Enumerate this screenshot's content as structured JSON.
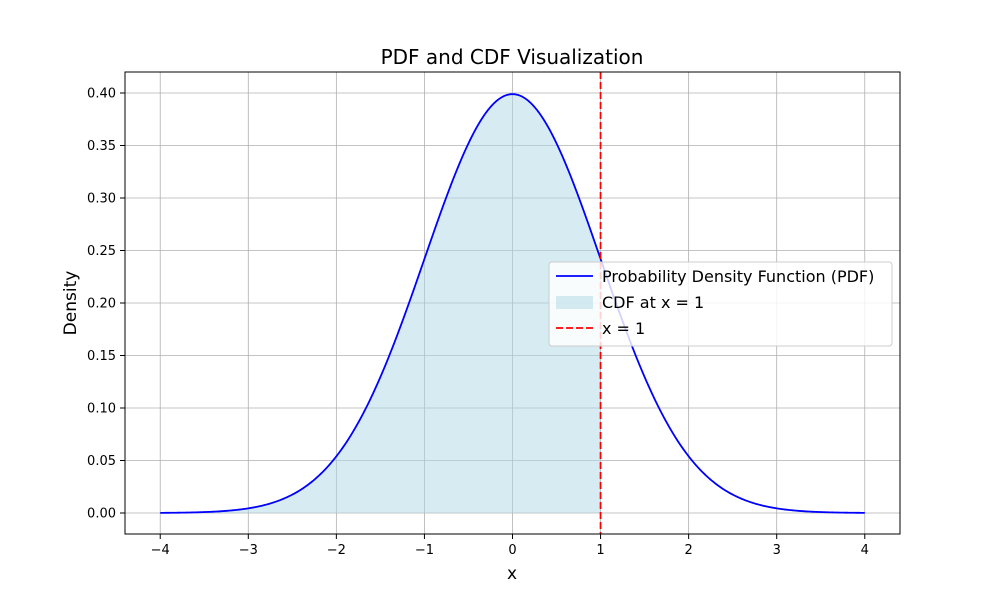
{
  "chart_data": {
    "type": "area",
    "title": "PDF and CDF Visualization",
    "xlabel": "x",
    "ylabel": "Density",
    "xlim": [
      -4.4,
      4.4
    ],
    "ylim": [
      -0.02,
      0.42
    ],
    "x_ticks": [
      -4,
      -3,
      -2,
      -1,
      0,
      1,
      2,
      3,
      4
    ],
    "x_tick_labels": [
      "−4",
      "−3",
      "−2",
      "−1",
      "0",
      "1",
      "2",
      "3",
      "4"
    ],
    "y_ticks": [
      0.0,
      0.05,
      0.1,
      0.15,
      0.2,
      0.25,
      0.3,
      0.35,
      0.4
    ],
    "y_tick_labels": [
      "0.00",
      "0.05",
      "0.10",
      "0.15",
      "0.20",
      "0.25",
      "0.30",
      "0.35",
      "0.40"
    ],
    "grid": true,
    "legend_position": "center-right",
    "series": [
      {
        "name": "Probability Density Function (PDF)",
        "kind": "line",
        "color": "#0000ff",
        "x": [
          -4.0,
          -3.5,
          -3.0,
          -2.5,
          -2.0,
          -1.5,
          -1.0,
          -0.5,
          0.0,
          0.5,
          1.0,
          1.5,
          2.0,
          2.5,
          3.0,
          3.5,
          4.0
        ],
        "y": [
          0.0001,
          0.0009,
          0.0044,
          0.0175,
          0.054,
          0.1295,
          0.242,
          0.3521,
          0.3989,
          0.3521,
          0.242,
          0.1295,
          0.054,
          0.0175,
          0.0044,
          0.0009,
          0.0001
        ]
      },
      {
        "name": "CDF at x = 1",
        "kind": "fill",
        "color": "#add8e6",
        "x": [
          -4.0,
          -3.5,
          -3.0,
          -2.5,
          -2.0,
          -1.5,
          -1.0,
          -0.5,
          0.0,
          0.5,
          1.0
        ],
        "y": [
          0.0001,
          0.0009,
          0.0044,
          0.0175,
          0.054,
          0.1295,
          0.242,
          0.3521,
          0.3989,
          0.3521,
          0.242
        ]
      },
      {
        "name": "x = 1",
        "kind": "vline",
        "color": "#ff0000",
        "x_value": 1
      }
    ]
  }
}
